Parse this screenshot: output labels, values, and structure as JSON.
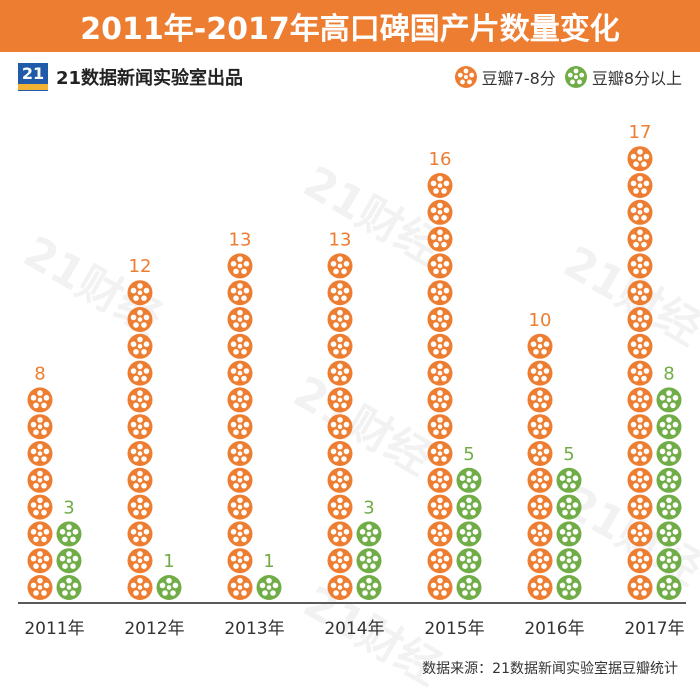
{
  "title": "2011年-2017年高口碑国产片数量变化",
  "logo_text": "21",
  "lab_label": "21数据新闻实验室出品",
  "watermark": "21财经",
  "footer": "数据来源：21数据新闻实验室据豆瓣统计",
  "colors": {
    "orange": "#ED7D31",
    "green": "#70AD47",
    "axis": "#595959"
  },
  "chart_data": {
    "type": "bar",
    "categories": [
      "2011年",
      "2012年",
      "2013年",
      "2014年",
      "2015年",
      "2016年",
      "2017年"
    ],
    "series": [
      {
        "name": "豆瓣7-8分",
        "color": "#ED7D31",
        "icon": "film-reel-icon",
        "values": [
          8,
          12,
          13,
          13,
          16,
          10,
          17
        ]
      },
      {
        "name": "豆瓣8分以上",
        "color": "#70AD47",
        "icon": "film-reel-icon",
        "values": [
          3,
          1,
          1,
          3,
          5,
          5,
          8
        ]
      }
    ],
    "title": "2011年-2017年高口碑国产片数量变化"
  }
}
